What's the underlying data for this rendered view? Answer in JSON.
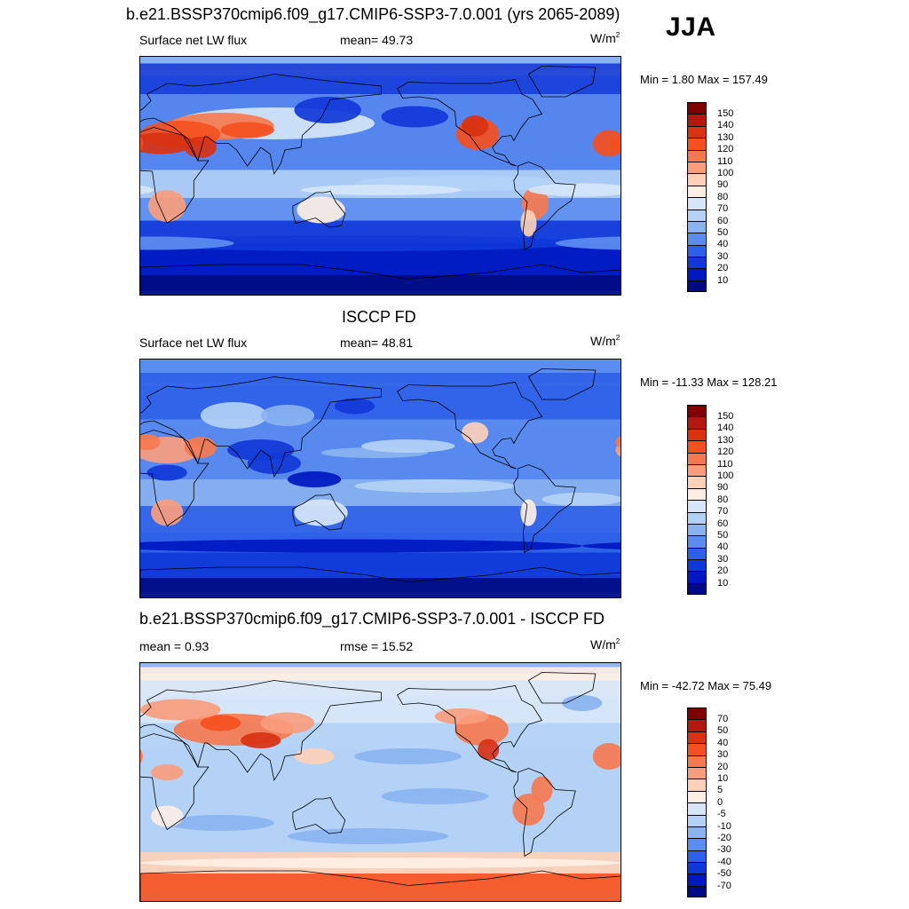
{
  "season": "JJA",
  "panels": [
    {
      "title": "b.e21.BSSP370cmip6.f09_g17.CMIP6-SSP3-7.0.001 (yrs 2065-2089)",
      "left_label": "Surface net LW flux",
      "center_label": "mean=  49.73",
      "units": "W/m",
      "units_sup": "2",
      "minmax": "Min =   1.80 Max = 157.49",
      "colorbar": {
        "levels": [
          "150",
          "140",
          "130",
          "120",
          "110",
          "100",
          "90",
          "80",
          "70",
          "60",
          "50",
          "40",
          "30",
          "20",
          "10"
        ],
        "colors": [
          "#7f0000",
          "#b2180d",
          "#d93213",
          "#f5501f",
          "#f57950",
          "#f99d7d",
          "#fdd0b8",
          "#fdeee3",
          "#d6e6f8",
          "#b3d1f5",
          "#8bb3f0",
          "#5b8df0",
          "#2d5fe8",
          "#1038d8",
          "#0018c0",
          "#000b82"
        ]
      },
      "field": "model"
    },
    {
      "title": "ISCCP FD",
      "left_label": "Surface net LW flux",
      "center_label": "mean=  48.81",
      "units": "W/m",
      "units_sup": "2",
      "minmax": "Min = -11.33 Max = 128.21",
      "colorbar": {
        "levels": [
          "150",
          "140",
          "130",
          "120",
          "110",
          "100",
          "90",
          "80",
          "70",
          "60",
          "50",
          "40",
          "30",
          "20",
          "10"
        ],
        "colors": [
          "#7f0000",
          "#b2180d",
          "#d93213",
          "#f5501f",
          "#f57950",
          "#f99d7d",
          "#fdd0b8",
          "#fdeee3",
          "#d6e6f8",
          "#b3d1f5",
          "#8bb3f0",
          "#5b8df0",
          "#2d5fe8",
          "#1038d8",
          "#0018c0",
          "#000b82"
        ]
      },
      "field": "obs"
    },
    {
      "title": "b.e21.BSSP370cmip6.f09_g17.CMIP6-SSP3-7.0.001 - ISCCP FD",
      "left_label": "mean =   0.93",
      "center_label": "rmse =  15.52",
      "units": "W/m",
      "units_sup": "2",
      "minmax": "Min = -42.72 Max =  75.49",
      "colorbar": {
        "levels": [
          "70",
          "50",
          "40",
          "30",
          "20",
          "10",
          "5",
          "0",
          "-5",
          "-10",
          "-20",
          "-30",
          "-40",
          "-50",
          "-70"
        ],
        "colors": [
          "#7f0000",
          "#b2180d",
          "#d93213",
          "#f5501f",
          "#f57950",
          "#f99d7d",
          "#fdd0b8",
          "#fdeee3",
          "#d6e6f8",
          "#b3d1f5",
          "#8bb3f0",
          "#5b8df0",
          "#2d5fe8",
          "#1038d8",
          "#0018c0",
          "#000b82"
        ]
      },
      "field": "diff"
    }
  ]
}
